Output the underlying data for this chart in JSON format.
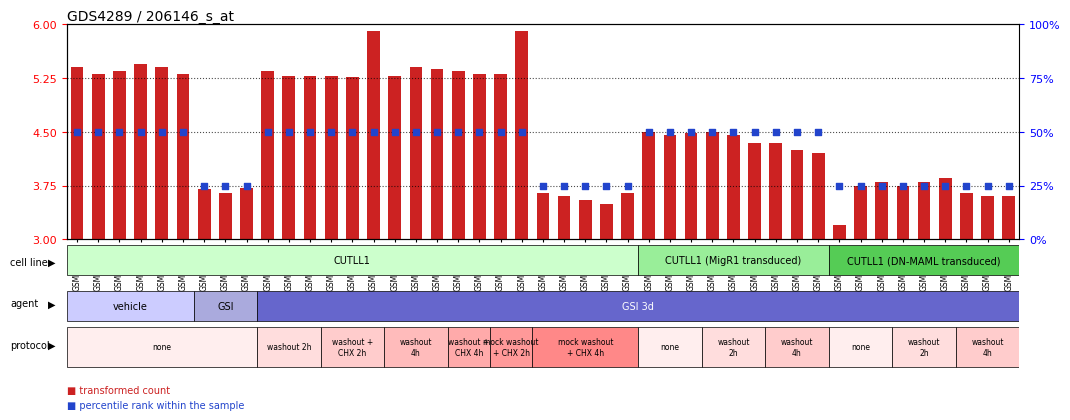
{
  "title": "GDS4289 / 206146_s_at",
  "samples": [
    "GSM731500",
    "GSM731501",
    "GSM731502",
    "GSM731503",
    "GSM731504",
    "GSM731505",
    "GSM731518",
    "GSM731519",
    "GSM731520",
    "GSM731506",
    "GSM731507",
    "GSM731508",
    "GSM731509",
    "GSM731510",
    "GSM731511",
    "GSM731512",
    "GSM731513",
    "GSM731514",
    "GSM731515",
    "GSM731516",
    "GSM731517",
    "GSM731521",
    "GSM731522",
    "GSM731523",
    "GSM731524",
    "GSM731525",
    "GSM731526",
    "GSM731527",
    "GSM731528",
    "GSM731529",
    "GSM731531",
    "GSM731532",
    "GSM731533",
    "GSM731534",
    "GSM731535",
    "GSM731536",
    "GSM731537",
    "GSM731538",
    "GSM731539",
    "GSM731540",
    "GSM731541",
    "GSM731542",
    "GSM731543",
    "GSM731544",
    "GSM731545"
  ],
  "bar_values": [
    5.4,
    5.3,
    5.35,
    5.45,
    5.4,
    5.3,
    3.7,
    3.65,
    3.72,
    5.35,
    5.28,
    5.28,
    5.28,
    5.27,
    5.9,
    5.28,
    5.4,
    5.38,
    5.35,
    5.3,
    5.3,
    5.9,
    3.65,
    3.6,
    3.55,
    3.5,
    3.65,
    4.5,
    4.45,
    4.48,
    4.5,
    4.45,
    4.35,
    4.35,
    4.25,
    4.2,
    3.2,
    3.75,
    3.8,
    3.75,
    3.8,
    3.85,
    3.65,
    3.6,
    3.6
  ],
  "percentile_values": [
    50,
    50,
    50,
    50,
    50,
    50,
    25,
    25,
    25,
    50,
    50,
    50,
    50,
    50,
    50,
    50,
    50,
    50,
    50,
    50,
    50,
    50,
    25,
    25,
    25,
    25,
    25,
    50,
    50,
    50,
    50,
    50,
    50,
    50,
    50,
    50,
    25,
    25,
    25,
    25,
    25,
    25,
    25,
    25,
    25
  ],
  "ylim_left": [
    3,
    6
  ],
  "ylim_right": [
    0,
    100
  ],
  "yticks_left": [
    3,
    3.75,
    4.5,
    5.25,
    6
  ],
  "yticks_right": [
    0,
    25,
    50,
    75,
    100
  ],
  "hlines": [
    3.75,
    4.5,
    5.25
  ],
  "bar_color": "#cc2222",
  "marker_color": "#2244cc",
  "bar_bottom": 3.0,
  "cell_line_groups": [
    {
      "label": "CUTLL1",
      "start": 0,
      "end": 26,
      "color": "#ccffcc"
    },
    {
      "label": "CUTLL1 (MigR1 transduced)",
      "start": 27,
      "end": 35,
      "color": "#99ee99"
    },
    {
      "label": "CUTLL1 (DN-MAML transduced)",
      "start": 36,
      "end": 44,
      "color": "#55cc55"
    }
  ],
  "agent_groups": [
    {
      "label": "vehicle",
      "start": 0,
      "end": 5,
      "color": "#ccccff"
    },
    {
      "label": "GSI",
      "start": 6,
      "end": 8,
      "color": "#aaaadd"
    },
    {
      "label": "GSI 3d",
      "start": 9,
      "end": 44,
      "color": "#6666cc"
    }
  ],
  "protocol_groups": [
    {
      "label": "none",
      "start": 0,
      "end": 8,
      "color": "#ffeeee"
    },
    {
      "label": "washout 2h",
      "start": 9,
      "end": 11,
      "color": "#ffdddd"
    },
    {
      "label": "washout +\nCHX 2h",
      "start": 12,
      "end": 14,
      "color": "#ffcccc"
    },
    {
      "label": "washout\n4h",
      "start": 15,
      "end": 17,
      "color": "#ffbbbb"
    },
    {
      "label": "washout +\nCHX 4h",
      "start": 18,
      "end": 19,
      "color": "#ffaaaa"
    },
    {
      "label": "mock washout\n+ CHX 2h",
      "start": 20,
      "end": 21,
      "color": "#ff9999"
    },
    {
      "label": "mock washout\n+ CHX 4h",
      "start": 22,
      "end": 26,
      "color": "#ff8888"
    },
    {
      "label": "none",
      "start": 27,
      "end": 29,
      "color": "#ffeeee"
    },
    {
      "label": "washout\n2h",
      "start": 30,
      "end": 32,
      "color": "#ffdddd"
    },
    {
      "label": "washout\n4h",
      "start": 33,
      "end": 35,
      "color": "#ffcccc"
    },
    {
      "label": "none",
      "start": 36,
      "end": 38,
      "color": "#ffeeee"
    },
    {
      "label": "washout\n2h",
      "start": 39,
      "end": 41,
      "color": "#ffdddd"
    },
    {
      "label": "washout\n4h",
      "start": 42,
      "end": 44,
      "color": "#ffcccc"
    }
  ]
}
